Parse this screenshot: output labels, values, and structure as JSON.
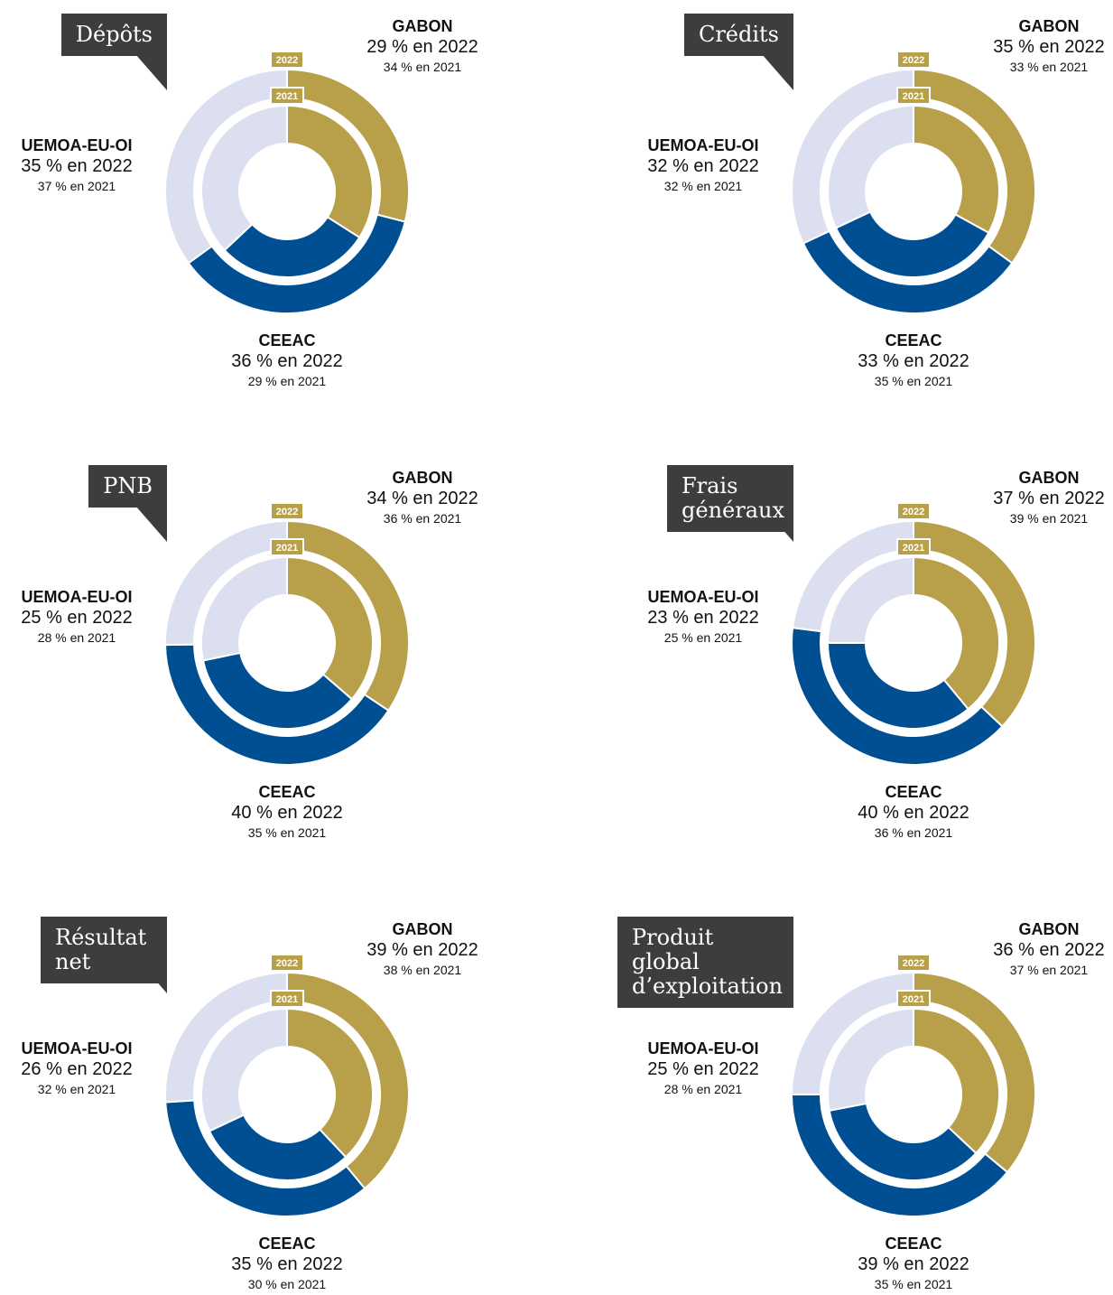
{
  "chart_data": [
    {
      "type": "donut",
      "title": "Dépôts",
      "categories": [
        "GABON",
        "CEEAC",
        "UEMOA-EU-OI"
      ],
      "colors": [
        "#b89f4a",
        "#004f93",
        "#dcdff0"
      ],
      "series": [
        {
          "name": "2022",
          "values": [
            29,
            36,
            35
          ],
          "value_labels": [
            "29 % en 2022",
            "36 % en 2022",
            "35 % en 2022"
          ]
        },
        {
          "name": "2021",
          "values": [
            34,
            29,
            37
          ],
          "value_labels": [
            "34 % en 2021",
            "29 % en 2021",
            "37 % en 2021"
          ]
        }
      ]
    },
    {
      "type": "donut",
      "title": "Crédits",
      "categories": [
        "GABON",
        "CEEAC",
        "UEMOA-EU-OI"
      ],
      "colors": [
        "#b89f4a",
        "#004f93",
        "#dcdff0"
      ],
      "series": [
        {
          "name": "2022",
          "values": [
            35,
            33,
            32
          ],
          "value_labels": [
            "35 % en 2022",
            "33 % en 2022",
            "32 % en 2022"
          ]
        },
        {
          "name": "2021",
          "values": [
            33,
            35,
            32
          ],
          "value_labels": [
            "33 % en 2021",
            "35 % en 2021",
            "32 % en 2021"
          ]
        }
      ]
    },
    {
      "type": "donut",
      "title": "PNB",
      "categories": [
        "GABON",
        "CEEAC",
        "UEMOA-EU-OI"
      ],
      "colors": [
        "#b89f4a",
        "#004f93",
        "#dcdff0"
      ],
      "series": [
        {
          "name": "2022",
          "values": [
            34,
            40,
            25
          ],
          "value_labels": [
            "34 % en 2022",
            "40 % en 2022",
            "25 % en 2022"
          ]
        },
        {
          "name": "2021",
          "values": [
            36,
            35,
            28
          ],
          "value_labels": [
            "36 % en 2021",
            "35 % en 2021",
            "28 % en 2021"
          ]
        }
      ]
    },
    {
      "type": "donut",
      "title": "Frais généraux",
      "categories": [
        "GABON",
        "CEEAC",
        "UEMOA-EU-OI"
      ],
      "colors": [
        "#b89f4a",
        "#004f93",
        "#dcdff0"
      ],
      "series": [
        {
          "name": "2022",
          "values": [
            37,
            40,
            23
          ],
          "value_labels": [
            "37 % en 2022",
            "40 % en 2022",
            "23 % en 2022"
          ]
        },
        {
          "name": "2021",
          "values": [
            39,
            36,
            25
          ],
          "value_labels": [
            "39 % en 2021",
            "36 % en 2021",
            "25 % en 2021"
          ]
        }
      ]
    },
    {
      "type": "donut",
      "title": "Résultat net",
      "categories": [
        "GABON",
        "CEEAC",
        "UEMOA-EU-OI"
      ],
      "colors": [
        "#b89f4a",
        "#004f93",
        "#dcdff0"
      ],
      "series": [
        {
          "name": "2022",
          "values": [
            39,
            35,
            26
          ],
          "value_labels": [
            "39 % en 2022",
            "35 % en 2022",
            "26 % en 2022"
          ]
        },
        {
          "name": "2021",
          "values": [
            38,
            30,
            32
          ],
          "value_labels": [
            "38 % en 2021",
            "30 % en 2021",
            "32 % en 2021"
          ]
        }
      ]
    },
    {
      "type": "donut",
      "title": "Produit global d’exploitation",
      "categories": [
        "GABON",
        "CEEAC",
        "UEMOA-EU-OI"
      ],
      "colors": [
        "#b89f4a",
        "#004f93",
        "#dcdff0"
      ],
      "series": [
        {
          "name": "2022",
          "values": [
            36,
            39,
            25
          ],
          "value_labels": [
            "36 % en 2022",
            "39 % en 2022",
            "25 % en 2022"
          ]
        },
        {
          "name": "2021",
          "values": [
            37,
            35,
            28
          ],
          "value_labels": [
            "37 % en 2021",
            "35 % en 2021",
            "28 % en 2021"
          ]
        }
      ]
    }
  ]
}
